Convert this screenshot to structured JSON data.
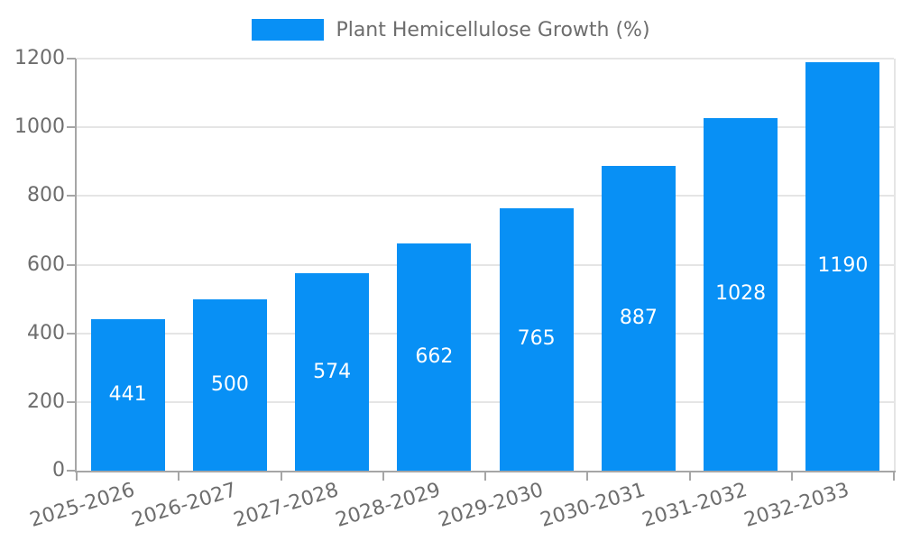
{
  "chart_data": {
    "type": "bar",
    "title": "Plant Hemicellulose Growth (%)",
    "categories": [
      "2025-2026",
      "2026-2027",
      "2027-2028",
      "2028-2029",
      "2029-2030",
      "2030-2031",
      "2031-2032",
      "2032-2033"
    ],
    "values": [
      441,
      500,
      574,
      662,
      765,
      887,
      1028,
      1190
    ],
    "xlabel": "",
    "ylabel": "",
    "ylim": [
      0,
      1200
    ],
    "yticks": [
      0,
      200,
      400,
      600,
      800,
      1000,
      1200
    ],
    "grid": true,
    "legend_position": "top",
    "bar_value_labels": "inside-center"
  },
  "colors": {
    "bar": "#0890f5",
    "bar_label": "#ffffff",
    "grid_line": "#e5e5e5",
    "axis_line": "#a6a6a6",
    "tick_text": "#6d6d6d",
    "legend_text": "#6d6d6d",
    "background": "#ffffff"
  }
}
